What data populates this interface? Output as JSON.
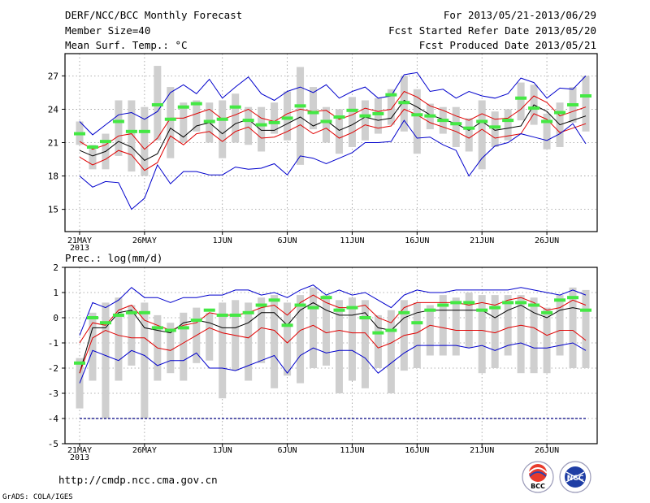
{
  "header": {
    "title": "DERF/NCC/BCC Monthly Forecast",
    "member_size": "Member Size=40",
    "variable": "Mean Surf. Temp.: °C",
    "period": "For 2013/05/21-2013/06/29",
    "start_date": "Fcst Started Refer Date 2013/05/20",
    "produced_date": "Fcst Produced Date 2013/05/21"
  },
  "footer": {
    "url": "http://cmdp.ncc.cma.gov.cn",
    "credit": "GrADS: COLA/IGES",
    "logo_bcc": "BCC",
    "logo_ncc": "NCC"
  },
  "colors": {
    "mean": "#000000",
    "inner_band": "#e00000",
    "outer_band": "#0000cc",
    "box": "#cfcfcf",
    "median": "#44e844",
    "grid": "#999999",
    "reference": "#000080"
  },
  "chart_data": [
    {
      "type": "line",
      "title": "Mean Surf. Temp.: °C",
      "xlabel": "",
      "ylabel": "",
      "xlim": [
        1,
        40
      ],
      "ylim": [
        13,
        29
      ],
      "yticks": [
        15,
        18,
        21,
        24,
        27
      ],
      "xtick_labels": [
        {
          "day": 1,
          "label": "21MAY",
          "sub": "2013"
        },
        {
          "day": 6,
          "label": "26MAY"
        },
        {
          "day": 12,
          "label": "1JUN"
        },
        {
          "day": 17,
          "label": "6JUN"
        },
        {
          "day": 22,
          "label": "11JUN"
        },
        {
          "day": 27,
          "label": "16JUN"
        },
        {
          "day": 32,
          "label": "21JUN"
        },
        {
          "day": 37,
          "label": "26JUN"
        }
      ],
      "grid": true,
      "series": [
        {
          "name": "upper bound",
          "role": "outer",
          "values": [
            22.9,
            21.7,
            22.6,
            23.5,
            23.7,
            23.1,
            23.8,
            25.5,
            26.2,
            25.4,
            26.7,
            25.0,
            26.0,
            26.9,
            25.4,
            24.8,
            25.6,
            26.0,
            25.5,
            26.2,
            25.0,
            25.6,
            26.0,
            25.0,
            25.2,
            27.1,
            27.3,
            25.6,
            25.8,
            25.0,
            25.6,
            25.2,
            25.0,
            25.4,
            26.8,
            26.4,
            25.0,
            25.9,
            25.8,
            27.0
          ]
        },
        {
          "name": "upper inner",
          "role": "inner",
          "values": [
            21.1,
            20.4,
            20.8,
            21.6,
            21.8,
            20.4,
            21.4,
            23.2,
            23.2,
            23.6,
            24.0,
            23.1,
            23.5,
            24.0,
            23.2,
            22.9,
            23.6,
            24.0,
            23.8,
            23.9,
            23.1,
            23.5,
            24.1,
            23.8,
            24.0,
            25.6,
            25.1,
            24.3,
            23.9,
            23.4,
            23.0,
            23.6,
            23.1,
            23.2,
            24.0,
            25.2,
            24.6,
            23.4,
            23.8,
            24.2
          ]
        },
        {
          "name": "ensemble mean",
          "role": "mean",
          "values": [
            20.3,
            19.8,
            20.2,
            21.1,
            20.6,
            19.4,
            20.0,
            22.3,
            21.5,
            22.5,
            22.8,
            21.8,
            22.7,
            23.1,
            22.1,
            22.1,
            22.7,
            23.3,
            22.5,
            23.0,
            22.1,
            22.6,
            23.3,
            23.0,
            23.2,
            24.8,
            24.2,
            23.5,
            23.1,
            22.7,
            22.1,
            22.9,
            22.1,
            22.3,
            22.5,
            24.4,
            23.8,
            22.6,
            23.0,
            23.4
          ]
        },
        {
          "name": "lower inner",
          "role": "inner",
          "values": [
            19.7,
            19.0,
            19.5,
            20.3,
            19.9,
            18.5,
            19.2,
            21.6,
            20.8,
            21.8,
            22.0,
            21.1,
            22.0,
            22.4,
            21.4,
            21.5,
            22.0,
            22.6,
            21.8,
            22.3,
            21.4,
            21.9,
            22.6,
            22.3,
            22.5,
            24.0,
            23.5,
            22.8,
            22.4,
            22.0,
            21.4,
            22.2,
            21.4,
            21.6,
            21.8,
            23.6,
            23.1,
            21.9,
            22.3,
            22.7
          ]
        },
        {
          "name": "lower bound",
          "role": "outer",
          "values": [
            18.0,
            17.0,
            17.5,
            17.4,
            15.0,
            16.0,
            19.0,
            17.3,
            18.4,
            18.4,
            18.1,
            18.1,
            18.8,
            18.6,
            18.7,
            19.1,
            18.1,
            19.8,
            19.6,
            19.1,
            19.6,
            20.1,
            21.0,
            21.0,
            21.1,
            23.0,
            21.4,
            21.5,
            20.8,
            20.3,
            18.0,
            19.6,
            20.7,
            21.0,
            21.8,
            21.5,
            21.2,
            21.8,
            22.7,
            20.9
          ]
        },
        {
          "name": "ensemble median",
          "role": "median",
          "values": [
            21.8,
            20.6,
            21.1,
            22.9,
            22.0,
            22.0,
            24.4,
            23.1,
            24.2,
            24.5,
            22.9,
            23.1,
            24.2,
            23.0,
            22.6,
            22.8,
            23.2,
            24.3,
            23.7,
            22.9,
            23.3,
            23.9,
            23.4,
            23.6,
            25.3,
            24.6,
            23.5,
            23.4,
            23.0,
            22.7,
            22.3,
            22.9,
            22.4,
            23.0,
            25.0,
            24.1,
            22.9,
            23.7,
            24.4,
            25.2
          ]
        },
        {
          "name": "box upper",
          "role": "box_high",
          "values": [
            22.9,
            20.8,
            21.8,
            24.8,
            24.8,
            24.2,
            27.9,
            26.0,
            24.6,
            24.8,
            24.6,
            24.8,
            25.4,
            24.2,
            24.2,
            24.6,
            25.6,
            27.8,
            26.0,
            24.2,
            24.0,
            25.1,
            24.8,
            25.0,
            25.8,
            27.0,
            25.8,
            24.5,
            24.2,
            24.2,
            23.2,
            24.8,
            23.8,
            24.0,
            26.4,
            26.2,
            23.6,
            24.6,
            26.0,
            27.0
          ]
        },
        {
          "name": "box lower",
          "role": "box_low",
          "values": [
            20.8,
            18.6,
            18.6,
            19.8,
            18.4,
            18.0,
            21.2,
            19.6,
            21.0,
            22.0,
            21.0,
            19.6,
            21.0,
            20.8,
            20.2,
            21.8,
            21.2,
            19.0,
            22.2,
            21.0,
            20.0,
            20.6,
            21.2,
            21.8,
            22.6,
            22.0,
            20.0,
            22.2,
            21.8,
            20.6,
            20.2,
            18.6,
            20.6,
            21.2,
            23.0,
            22.6,
            20.4,
            20.6,
            22.8,
            22.0
          ]
        }
      ]
    },
    {
      "type": "line",
      "title": "Prec.: log(mm/d)",
      "xlabel": "",
      "ylabel": "",
      "xlim": [
        1,
        40
      ],
      "ylim": [
        -5,
        2
      ],
      "yticks": [
        -5,
        -4,
        -3,
        -2,
        -1,
        0,
        1,
        2
      ],
      "xtick_labels": [
        {
          "day": 1,
          "label": "21MAY",
          "sub": "2013"
        },
        {
          "day": 6,
          "label": "26MAY"
        },
        {
          "day": 12,
          "label": "1JUN"
        },
        {
          "day": 17,
          "label": "6JUN"
        },
        {
          "day": 22,
          "label": "11JUN"
        },
        {
          "day": 27,
          "label": "16JUN"
        },
        {
          "day": 32,
          "label": "21JUN"
        },
        {
          "day": 37,
          "label": "26JUN"
        }
      ],
      "grid": true,
      "reference_line": -4,
      "series": [
        {
          "name": "upper bound",
          "role": "outer",
          "values": [
            -0.7,
            0.6,
            0.4,
            0.7,
            1.2,
            0.8,
            0.8,
            0.6,
            0.8,
            0.8,
            0.9,
            0.9,
            1.1,
            1.1,
            0.9,
            1.0,
            0.8,
            1.1,
            1.3,
            0.9,
            1.1,
            0.9,
            1.0,
            0.7,
            0.4,
            0.9,
            1.1,
            1.0,
            1.0,
            1.1,
            1.1,
            1.1,
            1.1,
            1.1,
            1.2,
            1.1,
            1.0,
            0.9,
            1.1,
            0.9
          ]
        },
        {
          "name": "upper inner",
          "role": "inner",
          "values": [
            -1.0,
            -0.2,
            -0.3,
            0.3,
            0.5,
            -0.1,
            -0.3,
            -0.5,
            -0.3,
            -0.2,
            0.2,
            0.1,
            0.1,
            0.2,
            0.4,
            0.5,
            0.1,
            0.6,
            0.9,
            0.6,
            0.4,
            0.4,
            0.5,
            0.0,
            -0.2,
            0.4,
            0.6,
            0.6,
            0.6,
            0.6,
            0.5,
            0.6,
            0.5,
            0.7,
            0.8,
            0.6,
            0.3,
            0.4,
            0.7,
            0.5
          ]
        },
        {
          "name": "ensemble mean",
          "role": "mean",
          "values": [
            -2.2,
            -0.4,
            -0.4,
            0.2,
            0.3,
            -0.4,
            -0.5,
            -0.6,
            -0.2,
            -0.1,
            -0.2,
            -0.4,
            -0.4,
            -0.2,
            0.2,
            0.2,
            -0.3,
            0.3,
            0.6,
            0.3,
            0.1,
            0.1,
            0.2,
            -0.4,
            -0.5,
            0.0,
            0.2,
            0.3,
            0.3,
            0.3,
            0.3,
            0.3,
            0.0,
            0.3,
            0.5,
            0.2,
            0.0,
            0.3,
            0.4,
            0.3
          ]
        },
        {
          "name": "lower inner",
          "role": "inner",
          "values": [
            -2.2,
            -0.8,
            -0.5,
            -0.7,
            -0.8,
            -0.8,
            -1.2,
            -1.3,
            -1.0,
            -0.7,
            -0.4,
            -0.6,
            -0.7,
            -0.8,
            -0.4,
            -0.5,
            -1.0,
            -0.5,
            -0.3,
            -0.6,
            -0.5,
            -0.6,
            -0.6,
            -1.2,
            -1.0,
            -0.7,
            -0.6,
            -0.3,
            -0.4,
            -0.5,
            -0.5,
            -0.5,
            -0.6,
            -0.4,
            -0.3,
            -0.4,
            -0.7,
            -0.5,
            -0.5,
            -0.9
          ]
        },
        {
          "name": "lower bound",
          "role": "outer",
          "values": [
            -2.6,
            -1.3,
            -1.5,
            -1.7,
            -1.3,
            -1.5,
            -1.9,
            -1.7,
            -1.7,
            -1.4,
            -2.0,
            -2.0,
            -2.1,
            -1.9,
            -1.7,
            -1.5,
            -2.2,
            -1.5,
            -1.2,
            -1.4,
            -1.3,
            -1.3,
            -1.6,
            -2.2,
            -1.8,
            -1.4,
            -1.1,
            -1.1,
            -1.1,
            -1.1,
            -1.2,
            -1.1,
            -1.3,
            -1.1,
            -1.0,
            -1.2,
            -1.2,
            -1.1,
            -1.0,
            -1.3
          ]
        },
        {
          "name": "ensemble median",
          "role": "median",
          "values": [
            -1.8,
            0.0,
            -0.2,
            0.1,
            0.2,
            0.2,
            -0.4,
            -0.5,
            -0.4,
            -0.1,
            0.3,
            0.1,
            0.1,
            0.2,
            0.5,
            0.7,
            -0.3,
            0.5,
            0.4,
            0.8,
            0.3,
            0.4,
            0.0,
            -0.6,
            -0.5,
            0.2,
            -0.2,
            0.3,
            0.5,
            0.6,
            0.6,
            0.3,
            0.4,
            0.6,
            0.6,
            0.5,
            0.2,
            0.7,
            0.8,
            0.3
          ]
        },
        {
          "name": "box upper",
          "role": "box_high",
          "values": [
            -1.6,
            0.2,
            0.6,
            0.8,
            0.5,
            0.6,
            0.1,
            -0.2,
            0.2,
            0.4,
            0.2,
            0.6,
            0.7,
            0.6,
            0.8,
            0.9,
            0.6,
            0.9,
            1.2,
            0.9,
            0.7,
            0.8,
            0.7,
            0.1,
            0.3,
            0.7,
            0.6,
            0.5,
            0.9,
            0.8,
            1.0,
            0.9,
            0.9,
            0.9,
            0.9,
            0.8,
            0.4,
            0.9,
            1.2,
            1.1
          ]
        },
        {
          "name": "box lower",
          "role": "box_low",
          "values": [
            -3.6,
            -2.5,
            -4.0,
            -2.5,
            -1.9,
            -4.0,
            -2.5,
            -2.2,
            -2.5,
            -1.8,
            -1.7,
            -3.2,
            -2.1,
            -2.5,
            -1.8,
            -2.8,
            -2.3,
            -2.6,
            -2.0,
            -1.9,
            -3.0,
            -2.5,
            -2.8,
            -2.0,
            -3.0,
            -2.1,
            -2.0,
            -1.5,
            -1.5,
            -1.5,
            -1.2,
            -2.2,
            -2.0,
            -1.5,
            -2.2,
            -2.2,
            -2.2,
            -1.5,
            -2.0,
            -2.0
          ]
        }
      ]
    }
  ]
}
